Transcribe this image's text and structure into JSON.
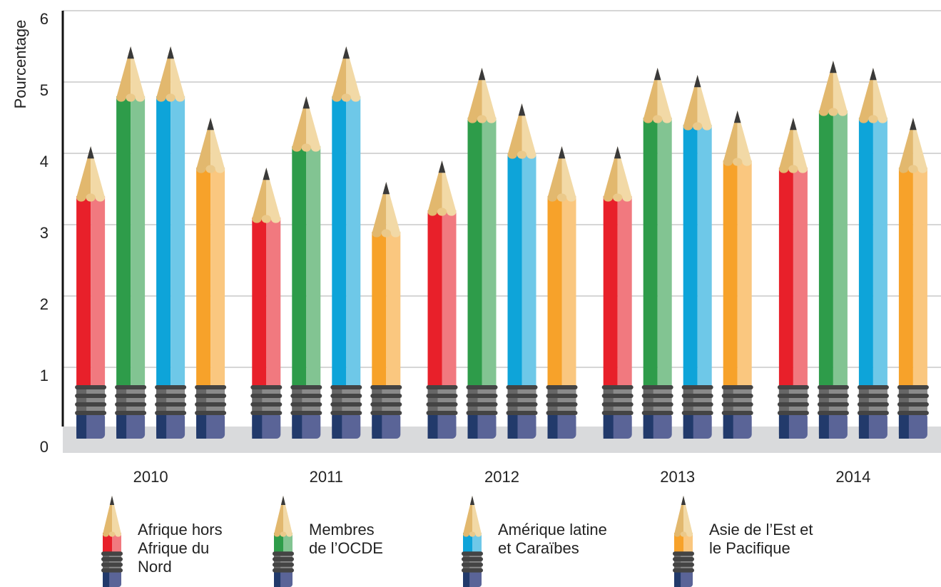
{
  "chart_data": {
    "type": "bar",
    "y_label": "Pourcentage",
    "categories": [
      "2010",
      "2011",
      "2012",
      "2013",
      "2014"
    ],
    "series": [
      {
        "name": "Afrique hors Afrique du Nord",
        "color": "#e8202a",
        "values": [
          4.1,
          3.8,
          3.9,
          4.1,
          4.5
        ]
      },
      {
        "name": "Membres de l’OCDE",
        "color": "#2e9c4a",
        "values": [
          5.5,
          4.8,
          5.2,
          5.2,
          5.3
        ]
      },
      {
        "name": "Amérique latine et Caraïbes",
        "color": "#0ea4d9",
        "values": [
          5.5,
          5.5,
          4.7,
          5.1,
          5.2
        ]
      },
      {
        "name": "Asie de l’Est et le Pacifique",
        "color": "#f7a22a",
        "values": [
          4.5,
          3.6,
          4.1,
          4.6,
          4.5
        ]
      }
    ],
    "ylim": [
      0,
      6
    ],
    "yticks": [
      0,
      1,
      2,
      3,
      4,
      5,
      6
    ],
    "grid": true
  }
}
